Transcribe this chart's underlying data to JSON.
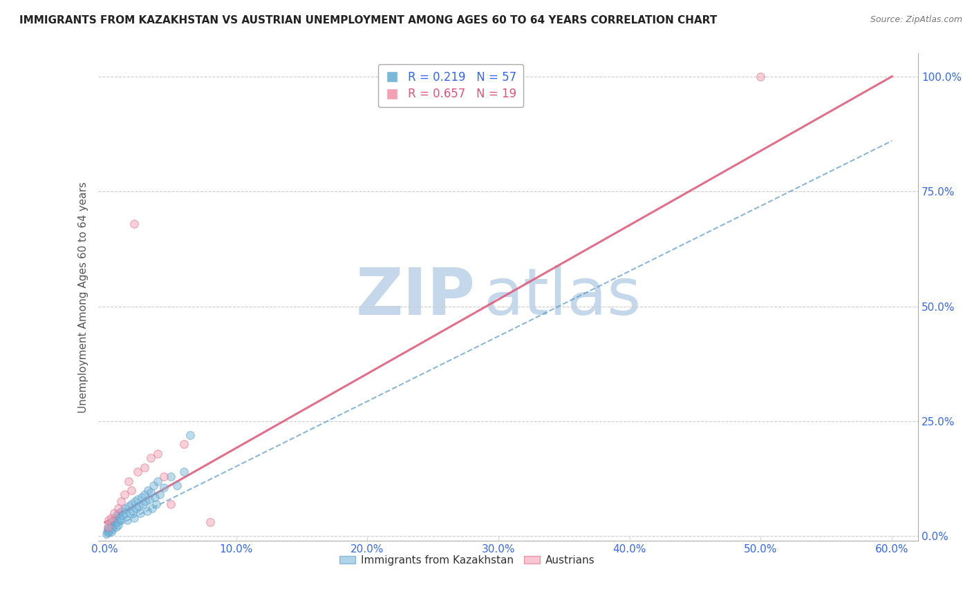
{
  "title": "IMMIGRANTS FROM KAZAKHSTAN VS AUSTRIAN UNEMPLOYMENT AMONG AGES 60 TO 64 YEARS CORRELATION CHART",
  "source": "Source: ZipAtlas.com",
  "xlabel_vals": [
    0.0,
    10.0,
    20.0,
    30.0,
    40.0,
    50.0,
    60.0
  ],
  "ylabel_vals": [
    0.0,
    25.0,
    50.0,
    75.0,
    100.0
  ],
  "xlim": [
    -0.5,
    62.0
  ],
  "ylim": [
    -1.0,
    105.0
  ],
  "ylabel": "Unemployment Among Ages 60 to 64 years",
  "legend_blue_r": "R = 0.219",
  "legend_blue_n": "N = 57",
  "legend_pink_r": "R = 0.657",
  "legend_pink_n": "N = 19",
  "blue_color": "#7ab8d9",
  "pink_color": "#f4a0b5",
  "blue_edge_color": "#5599cc",
  "pink_edge_color": "#e06080",
  "marker_size": 70,
  "watermark_zip": "ZIP",
  "watermark_atlas": "atlas",
  "watermark_color": "#d0e4f0",
  "blue_scatter_x": [
    0.1,
    0.15,
    0.2,
    0.25,
    0.3,
    0.35,
    0.4,
    0.45,
    0.5,
    0.5,
    0.55,
    0.6,
    0.65,
    0.7,
    0.75,
    0.8,
    0.85,
    0.9,
    0.95,
    1.0,
    1.0,
    1.1,
    1.2,
    1.3,
    1.4,
    1.5,
    1.6,
    1.7,
    1.8,
    1.9,
    2.0,
    2.1,
    2.2,
    2.3,
    2.4,
    2.5,
    2.6,
    2.7,
    2.8,
    2.9,
    3.0,
    3.1,
    3.2,
    3.3,
    3.4,
    3.5,
    3.6,
    3.7,
    3.8,
    3.9,
    4.0,
    4.2,
    4.5,
    5.0,
    5.5,
    6.0,
    6.5
  ],
  "blue_scatter_y": [
    0.5,
    1.0,
    1.5,
    0.8,
    2.0,
    1.2,
    1.8,
    2.5,
    1.0,
    3.0,
    2.0,
    1.5,
    3.5,
    2.5,
    4.0,
    3.0,
    2.0,
    4.5,
    3.0,
    5.0,
    2.5,
    4.0,
    3.5,
    5.5,
    4.5,
    6.0,
    5.0,
    3.5,
    6.5,
    5.0,
    7.0,
    5.5,
    4.0,
    7.5,
    6.0,
    8.0,
    6.5,
    5.0,
    8.5,
    7.0,
    9.0,
    7.5,
    5.5,
    10.0,
    8.0,
    9.5,
    6.0,
    11.0,
    8.5,
    7.0,
    12.0,
    9.0,
    10.5,
    13.0,
    11.0,
    14.0,
    22.0
  ],
  "pink_scatter_x": [
    0.2,
    0.3,
    0.5,
    0.7,
    1.0,
    1.2,
    1.5,
    1.8,
    2.0,
    2.2,
    2.5,
    3.0,
    3.5,
    4.0,
    4.5,
    5.0,
    6.0,
    8.0,
    50.0
  ],
  "pink_scatter_y": [
    2.0,
    3.5,
    4.0,
    5.0,
    6.0,
    7.5,
    9.0,
    12.0,
    10.0,
    68.0,
    14.0,
    15.0,
    17.0,
    18.0,
    13.0,
    7.0,
    20.0,
    3.0,
    100.0
  ],
  "blue_trend_x": [
    0.0,
    60.0
  ],
  "blue_trend_y": [
    1.0,
    86.0
  ],
  "pink_trend_x": [
    0.0,
    60.0
  ],
  "pink_trend_y": [
    3.0,
    100.0
  ],
  "grid_color": "#cccccc",
  "background_color": "#ffffff",
  "title_fontsize": 11,
  "axis_label_fontsize": 11,
  "tick_fontsize": 11,
  "source_fontsize": 9,
  "tick_color": "#3366ff"
}
